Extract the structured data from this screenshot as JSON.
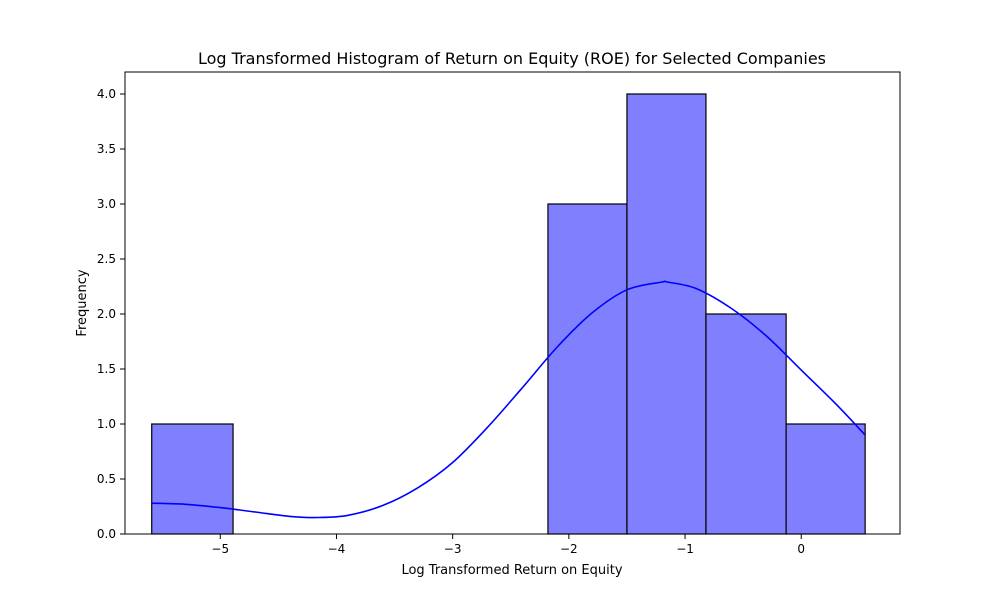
{
  "chart_data": {
    "type": "bar",
    "title": "Log Transformed Histogram of Return on Equity (ROE) for Selected Companies",
    "xlabel": "Log Transformed Return on Equity",
    "ylabel": "Frequency",
    "xlim": [
      -5.82,
      0.85
    ],
    "ylim": [
      0,
      4.2
    ],
    "xticks": [
      -5,
      -4,
      -3,
      -2,
      -1,
      0
    ],
    "xtick_labels": [
      "−5",
      "−4",
      "−3",
      "−2",
      "−1",
      "0"
    ],
    "yticks": [
      0.0,
      0.5,
      1.0,
      1.5,
      2.0,
      2.5,
      3.0,
      3.5,
      4.0
    ],
    "ytick_labels": [
      "0.0",
      "0.5",
      "1.0",
      "1.5",
      "2.0",
      "2.5",
      "3.0",
      "3.5",
      "4.0"
    ],
    "grid": false,
    "bins": [
      {
        "x0": -5.59,
        "x1": -4.89,
        "count": 1
      },
      {
        "x0": -4.89,
        "x1": -4.19,
        "count": 0
      },
      {
        "x0": -4.19,
        "x1": -3.5,
        "count": 0
      },
      {
        "x0": -3.5,
        "x1": -2.82,
        "count": 0
      },
      {
        "x0": -2.82,
        "x1": -2.18,
        "count": 0
      },
      {
        "x0": -2.18,
        "x1": -1.5,
        "count": 3
      },
      {
        "x0": -1.5,
        "x1": -0.82,
        "count": 4
      },
      {
        "x0": -0.82,
        "x1": -0.13,
        "count": 2
      },
      {
        "x0": -0.13,
        "x1": 0.55,
        "count": 1
      }
    ],
    "kde": {
      "x": [
        -5.59,
        -5.3,
        -5.0,
        -4.7,
        -4.4,
        -4.15,
        -3.9,
        -3.6,
        -3.3,
        -3.0,
        -2.7,
        -2.4,
        -2.1,
        -1.8,
        -1.5,
        -1.2,
        -1.15,
        -0.9,
        -0.6,
        -0.3,
        0.0,
        0.3,
        0.55
      ],
      "y": [
        0.28,
        0.27,
        0.24,
        0.2,
        0.16,
        0.15,
        0.17,
        0.26,
        0.42,
        0.65,
        0.97,
        1.33,
        1.7,
        2.01,
        2.22,
        2.29,
        2.29,
        2.23,
        2.05,
        1.8,
        1.49,
        1.18,
        0.9
      ]
    },
    "colors": {
      "bar_fill": "#8080ff",
      "bar_edge": "#000000",
      "kde_line": "#0000ff"
    }
  }
}
